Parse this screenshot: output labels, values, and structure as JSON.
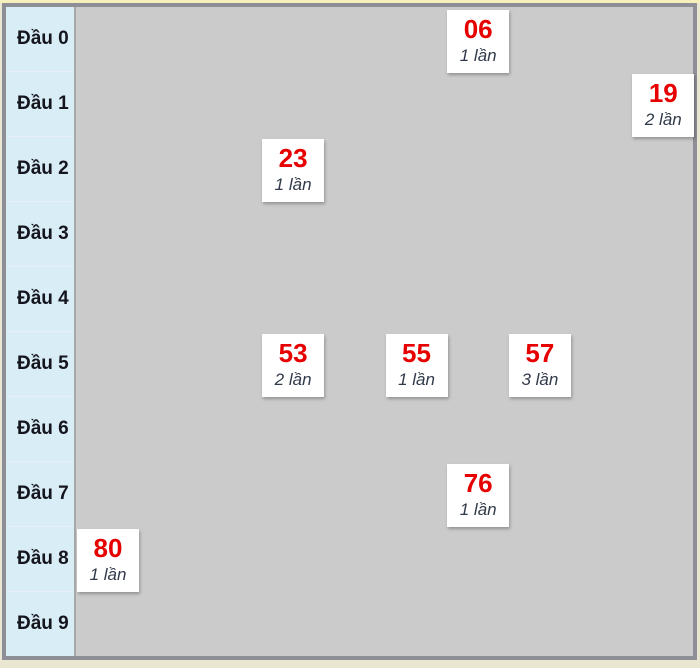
{
  "chart": {
    "row_labels": [
      "Đầu 0",
      "Đầu 1",
      "Đầu 2",
      "Đầu 3",
      "Đầu 4",
      "Đầu 5",
      "Đầu 6",
      "Đầu 7",
      "Đầu 8",
      "Đầu 9"
    ],
    "colors": {
      "number_red": "#e60000",
      "count_text": "#303a4a",
      "sidebar_blue": "#d9edf7",
      "content_gray": "#cbcbcb",
      "frame_border": "#8e8e96",
      "outer_strip": "#f6f0bd",
      "card_bg": "#ffffff"
    }
  },
  "chart_data": {
    "type": "table",
    "title": "",
    "xlabel": "",
    "ylabel": "",
    "row_labels": [
      "Đầu 0",
      "Đầu 1",
      "Đầu 2",
      "Đầu 3",
      "Đầu 4",
      "Đầu 5",
      "Đầu 6",
      "Đầu 7",
      "Đầu 8",
      "Đầu 9"
    ],
    "entries": [
      {
        "number": "06",
        "head": 0,
        "tail": 6,
        "count": 1,
        "count_label": "1 lần"
      },
      {
        "number": "19",
        "head": 1,
        "tail": 9,
        "count": 2,
        "count_label": "2 lần"
      },
      {
        "number": "23",
        "head": 2,
        "tail": 3,
        "count": 1,
        "count_label": "1 lần"
      },
      {
        "number": "53",
        "head": 5,
        "tail": 3,
        "count": 2,
        "count_label": "2 lần"
      },
      {
        "number": "55",
        "head": 5,
        "tail": 5,
        "count": 1,
        "count_label": "1 lần"
      },
      {
        "number": "57",
        "head": 5,
        "tail": 7,
        "count": 3,
        "count_label": "3 lần"
      },
      {
        "number": "76",
        "head": 7,
        "tail": 6,
        "count": 1,
        "count_label": "1 lần"
      },
      {
        "number": "80",
        "head": 8,
        "tail": 0,
        "count": 1,
        "count_label": "1 lần"
      }
    ]
  }
}
